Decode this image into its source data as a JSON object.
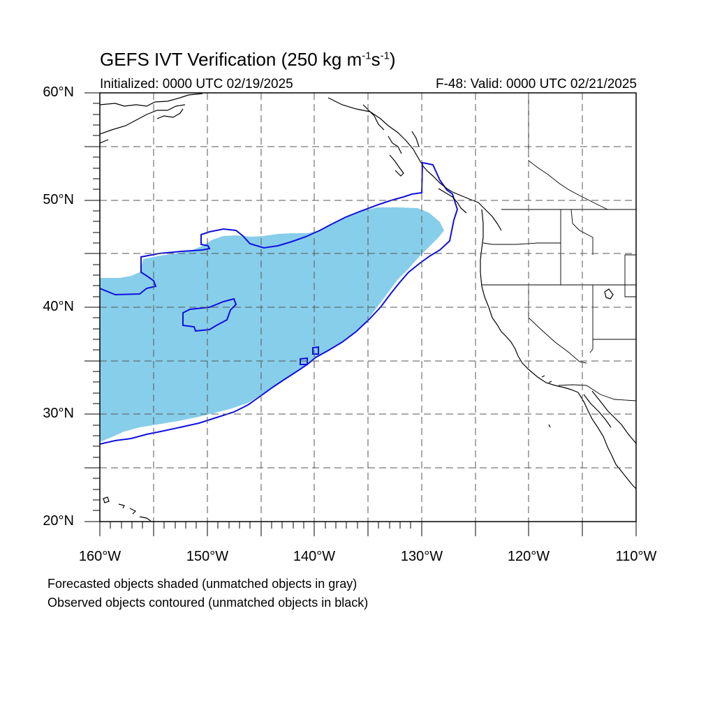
{
  "title": {
    "prefix": "GEFS IVT Verification (250 kg m",
    "sup1": "-1",
    "mid": "s",
    "sup2": "-1",
    "suffix": ")"
  },
  "subtitle_left": "Initialized: 0000 UTC 02/19/2025",
  "subtitle_right": "F-48: Valid: 0000 UTC 02/21/2025",
  "lat_labels": [
    "60°N",
    "50°N",
    "40°N",
    "30°N",
    "20°N"
  ],
  "lon_labels": [
    "160°W",
    "150°W",
    "140°W",
    "130°W",
    "120°W",
    "110°W"
  ],
  "notes": [
    "Forecasted objects shaded (unmatched objects in gray)",
    "Observed objects contoured (unmatched objects in black)"
  ],
  "colors": {
    "forecast_fill": "#87ceea",
    "observed_contour": "#1010e0",
    "coastline": "#000000",
    "grid": "#555555"
  },
  "map_extent": {
    "lon_min": -160,
    "lon_max": -110,
    "lat_min": 20,
    "lat_max": 60
  }
}
